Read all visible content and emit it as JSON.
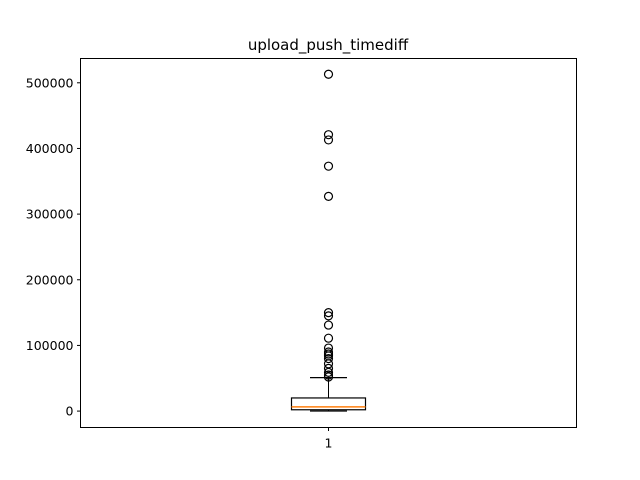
{
  "chart_data": {
    "type": "box",
    "title": "upload_push_timediff",
    "xlabel": "",
    "ylabel": "",
    "categories": [
      "1"
    ],
    "ylim": [
      -25000,
      537000
    ],
    "yticks": [
      0,
      100000,
      200000,
      300000,
      400000,
      500000
    ],
    "ytick_labels": [
      "0",
      "100000",
      "200000",
      "300000",
      "400000",
      "500000"
    ],
    "box": {
      "whisker_low": 0,
      "q1": 2000,
      "median": 6500,
      "q3": 20000,
      "whisker_high": 51000
    },
    "fliers": [
      513000,
      421000,
      413000,
      373000,
      327000,
      150000,
      145000,
      131000,
      111000,
      96000,
      90000,
      87000,
      84000,
      80000,
      72000,
      65000,
      59000,
      55000,
      52000
    ],
    "colors": {
      "box": "#000000",
      "median": "#ff7f0e",
      "fliers": "#000000"
    },
    "grid": false
  }
}
